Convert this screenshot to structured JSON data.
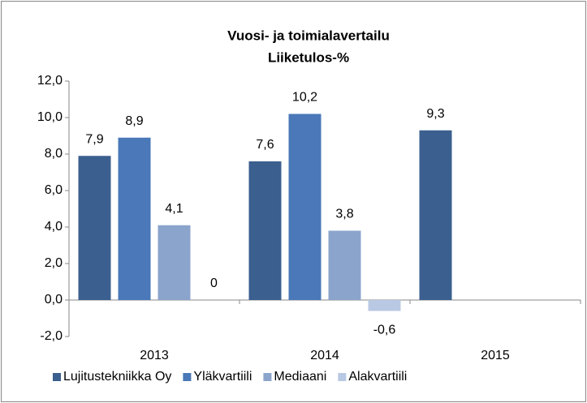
{
  "chart_data": {
    "type": "bar",
    "title": [
      "Vuosi- ja toimialavertailu",
      "Liiketulos-%"
    ],
    "categories": [
      "2013",
      "2014",
      "2015"
    ],
    "series": [
      {
        "name": "Lujitustekniikka Oy",
        "color": "#3b5f8f",
        "values": [
          7.9,
          7.6,
          9.3
        ],
        "value_labels": [
          "7,9",
          "7,6",
          "9,3"
        ]
      },
      {
        "name": "Yläkvartiili",
        "color": "#4a78b8",
        "values": [
          8.9,
          10.2,
          null
        ],
        "value_labels": [
          "8,9",
          "10,2",
          null
        ]
      },
      {
        "name": "Mediaani",
        "color": "#8ba4cc",
        "values": [
          4.1,
          3.8,
          null
        ],
        "value_labels": [
          "4,1",
          "3,8",
          null
        ]
      },
      {
        "name": "Alakvartiili",
        "color": "#b9c8e3",
        "values": [
          0,
          -0.6,
          null
        ],
        "value_labels": [
          "0",
          "-0,6",
          null
        ]
      }
    ],
    "ylim": [
      -2,
      12
    ],
    "yticks": [
      {
        "value": -2,
        "label": "-2,0"
      },
      {
        "value": 0,
        "label": "0,0"
      },
      {
        "value": 2,
        "label": "2,0"
      },
      {
        "value": 4,
        "label": "4,0"
      },
      {
        "value": 6,
        "label": "6,0"
      },
      {
        "value": 8,
        "label": "8,0"
      },
      {
        "value": 10,
        "label": "10,0"
      },
      {
        "value": 12,
        "label": "12,0"
      }
    ],
    "grid": false,
    "legend": "bottom"
  }
}
